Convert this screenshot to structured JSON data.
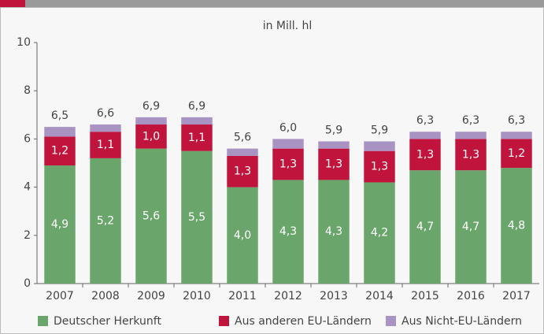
{
  "chart_data": {
    "type": "stacked-bar",
    "subtitle": "in Mill. hl",
    "categories": [
      "2007",
      "2008",
      "2009",
      "2010",
      "2011",
      "2012",
      "2013",
      "2014",
      "2015",
      "2016",
      "2017"
    ],
    "series": [
      {
        "name": "Deutscher Herkunft",
        "color": "#6aa56b",
        "values": [
          4.9,
          5.2,
          5.6,
          5.5,
          4.0,
          4.3,
          4.3,
          4.2,
          4.7,
          4.7,
          4.8
        ],
        "value_labels": [
          "4,9",
          "5,2",
          "5,6",
          "5,5",
          "4,0",
          "4,3",
          "4,3",
          "4,2",
          "4,7",
          "4,7",
          "4,8"
        ]
      },
      {
        "name": "Aus anderen EU-Ländern",
        "color": "#c0143c",
        "values": [
          1.2,
          1.1,
          1.0,
          1.1,
          1.3,
          1.3,
          1.3,
          1.3,
          1.3,
          1.3,
          1.2
        ],
        "value_labels": [
          "1,2",
          "1,1",
          "1,0",
          "1,1",
          "1,3",
          "1,3",
          "1,3",
          "1,3",
          "1,3",
          "1,3",
          "1,2"
        ]
      },
      {
        "name": "Aus Nicht-EU-Ländern",
        "color": "#a993c3",
        "values": [
          0.4,
          0.3,
          0.3,
          0.3,
          0.3,
          0.4,
          0.3,
          0.4,
          0.3,
          0.3,
          0.3
        ]
      }
    ],
    "totals": [
      6.5,
      6.6,
      6.9,
      6.9,
      5.6,
      6.0,
      5.9,
      5.9,
      6.3,
      6.3,
      6.3
    ],
    "total_labels": [
      "6,5",
      "6,6",
      "6,9",
      "6,9",
      "5,6",
      "6,0",
      "5,9",
      "5,9",
      "6,3",
      "6,3",
      "6,3"
    ],
    "ylim": [
      0,
      10
    ],
    "yticks": [
      0,
      2,
      4,
      6,
      8,
      10
    ],
    "grid": false
  }
}
